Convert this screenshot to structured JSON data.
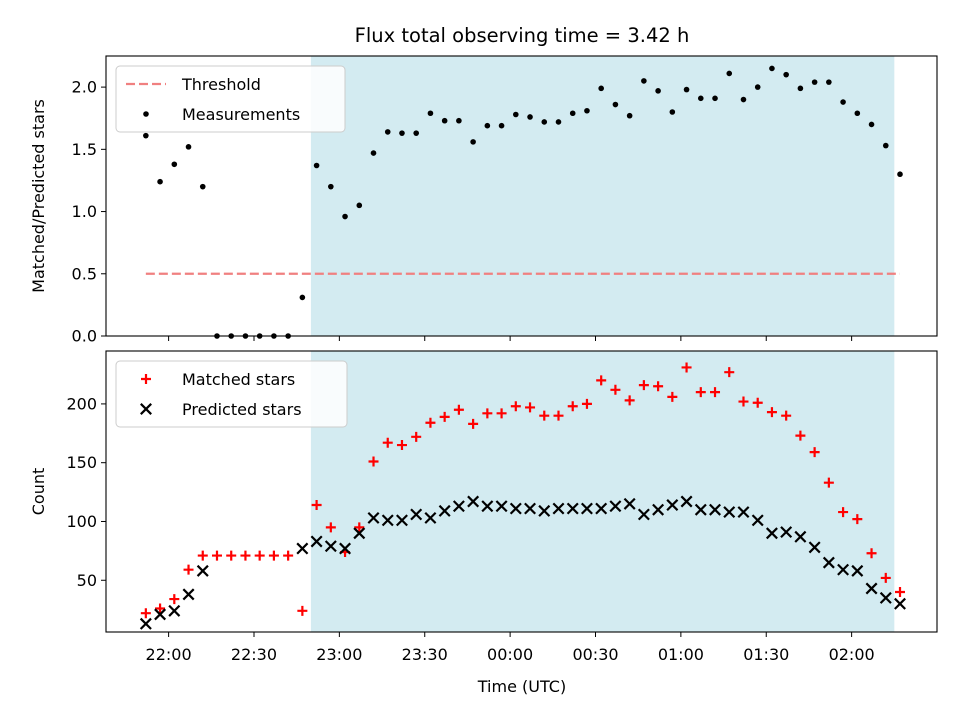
{
  "chart_data": {
    "type": "scatter",
    "title": "Flux total observing time = 3.42 h",
    "xlabel": "Time (UTC)",
    "x_ticks": [
      "22:00",
      "22:30",
      "23:00",
      "23:30",
      "00:00",
      "00:30",
      "01:00",
      "01:30",
      "02:00"
    ],
    "x_tick_minutes": [
      0,
      30,
      60,
      90,
      120,
      150,
      180,
      210,
      240
    ],
    "x_range_minutes": [
      -22,
      270
    ],
    "highlight_span_minutes": [
      50,
      255
    ],
    "highlight_color": "#d3ebf1",
    "x_minutes": [
      -8,
      -3,
      2,
      7,
      12,
      17,
      22,
      27,
      32,
      37,
      42,
      47,
      52,
      57,
      62,
      67,
      72,
      77,
      82,
      87,
      92,
      97,
      102,
      107,
      112,
      117,
      122,
      127,
      132,
      137,
      142,
      147,
      152,
      157,
      162,
      167,
      172,
      177,
      182,
      187,
      192,
      197,
      202,
      207,
      212,
      217,
      222,
      227,
      232,
      237,
      242,
      247,
      252,
      257
    ],
    "panels": [
      {
        "ylabel": "Matched/Predicted stars",
        "ylim": [
          0,
          2.25
        ],
        "y_ticks": [
          0.0,
          0.5,
          1.0,
          1.5,
          2.0
        ],
        "y_tick_labels": [
          "0.0",
          "0.5",
          "1.0",
          "1.5",
          "2.0"
        ],
        "legend": "top-left",
        "series": [
          {
            "name": "Threshold",
            "kind": "dashed-line",
            "color": "#f08080",
            "x": [
              -8,
              257
            ],
            "y": [
              0.5,
              0.5
            ]
          },
          {
            "name": "Measurements",
            "kind": "dot",
            "color": "#000000",
            "y": [
              1.61,
              1.24,
              1.38,
              1.52,
              1.2,
              0.0,
              0.0,
              0.0,
              0.0,
              0.0,
              0.0,
              0.31,
              1.37,
              1.2,
              0.96,
              1.05,
              1.47,
              1.64,
              1.63,
              1.63,
              1.79,
              1.73,
              1.73,
              1.56,
              1.69,
              1.69,
              1.78,
              1.76,
              1.72,
              1.72,
              1.79,
              1.81,
              1.99,
              1.86,
              1.77,
              2.05,
              1.97,
              1.8,
              1.98,
              1.91,
              1.91,
              2.11,
              1.9,
              2.0,
              2.15,
              2.1,
              1.99,
              2.04,
              2.04,
              1.88,
              1.79,
              1.7,
              1.53,
              1.3
            ]
          }
        ]
      },
      {
        "ylabel": "Count",
        "ylim": [
          6,
          245
        ],
        "y_ticks": [
          50,
          100,
          150,
          200
        ],
        "y_tick_labels": [
          "50",
          "100",
          "150",
          "200"
        ],
        "legend": "top-left",
        "series": [
          {
            "name": "Matched stars",
            "kind": "plus",
            "color": "#ff0000",
            "y": [
              22,
              26,
              34,
              59,
              71,
              71,
              71,
              71,
              71,
              71,
              71,
              24,
              114,
              95,
              74,
              95,
              151,
              167,
              165,
              172,
              184,
              189,
              195,
              183,
              192,
              192,
              198,
              197,
              190,
              190,
              198,
              200,
              220,
              212,
              203,
              216,
              215,
              206,
              231,
              210,
              210,
              227,
              202,
              201,
              193,
              190,
              173,
              159,
              133,
              108,
              102,
              73,
              52,
              40
            ]
          },
          {
            "name": "Predicted stars",
            "kind": "x",
            "color": "#000000",
            "y": [
              13,
              21,
              24,
              38,
              58,
              null,
              null,
              null,
              null,
              null,
              null,
              77,
              83,
              79,
              77,
              90,
              103,
              101,
              101,
              106,
              103,
              109,
              113,
              117,
              113,
              113,
              111,
              111,
              109,
              111,
              111,
              111,
              111,
              113,
              115,
              106,
              110,
              114,
              117,
              110,
              110,
              108,
              108,
              101,
              90,
              91,
              87,
              78,
              65,
              59,
              58,
              43,
              35,
              30
            ]
          }
        ]
      }
    ]
  }
}
